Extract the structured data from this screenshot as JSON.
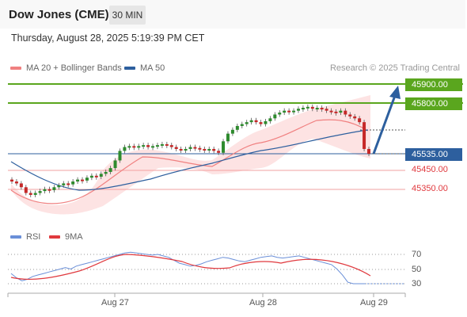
{
  "header": {
    "title": "Dow Jones (CME)",
    "interval": "30 MIN",
    "timestamp": "Thursday, August 28, 2025 5:19:39 PM CET"
  },
  "legend": {
    "ma20_label": "MA 20 + Bollinger Bands",
    "ma50_label": "MA 50",
    "credit": "Research © 2025 Trading Central",
    "rsi_label": "RSI",
    "ma9_label": "9MA"
  },
  "colors": {
    "ma20": "#f08080",
    "ma50": "#2d5f9e",
    "bullish": "#2e8b2e",
    "bearish": "#c62828",
    "resistance": "#5aa61e",
    "support": "#e0393e",
    "rsi": "#6a8fd8",
    "rsi_ma": "#e0393e"
  },
  "levels": {
    "r2": "45900.00",
    "r1": "45800.00",
    "current": "45535.00",
    "s1": "45450.00",
    "s2": "45350.00"
  },
  "xaxis": [
    "Aug 27",
    "Aug 28",
    "Aug 29"
  ],
  "rsi_axis": [
    "70",
    "50",
    "30"
  ],
  "chart_data": {
    "type": "candlestick",
    "series_note": "",
    "y_levels": [
      45900,
      45800,
      45535,
      45450,
      45350
    ],
    "closes": [
      45390,
      45380,
      45360,
      45330,
      45320,
      45330,
      45340,
      45350,
      45345,
      45360,
      45370,
      45380,
      45375,
      45390,
      45400,
      45395,
      45410,
      45420,
      45415,
      45430,
      45440,
      45460,
      45500,
      45550,
      45570,
      45575,
      45570,
      45575,
      45580,
      45570,
      45575,
      45580,
      45585,
      45580,
      45570,
      45560,
      45555,
      45560,
      45570,
      45565,
      45560,
      45555,
      45560,
      45550,
      45540,
      45600,
      45640,
      45660,
      45680,
      45690,
      45700,
      45710,
      45700,
      45690,
      45705,
      45720,
      45740,
      45750,
      45760,
      45755,
      45760,
      45770,
      45775,
      45780,
      45770,
      45775,
      45770,
      45760,
      45755,
      45750,
      45760,
      45740,
      45730,
      45720,
      45700,
      45560,
      45535
    ],
    "forecast": {
      "from": 45535,
      "to": 45900
    },
    "rsi": [
      44,
      38,
      34,
      36,
      40,
      42,
      44,
      46,
      48,
      50,
      52,
      50,
      54,
      56,
      58,
      60,
      62,
      64,
      66,
      68,
      70,
      72,
      73,
      72,
      71,
      70,
      69,
      70,
      68,
      66,
      62,
      58,
      56,
      54,
      55,
      57,
      60,
      62,
      64,
      66,
      65,
      63,
      61,
      60,
      62,
      64,
      66,
      67,
      68,
      66,
      65,
      66,
      67,
      68,
      66,
      64,
      62,
      60,
      58,
      56,
      50,
      42,
      32,
      30,
      30,
      30
    ]
  }
}
